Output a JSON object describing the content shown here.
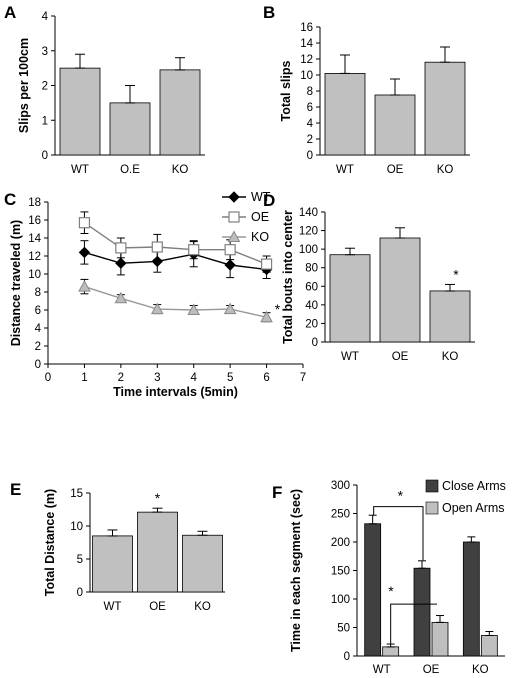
{
  "panels": [
    {
      "letter": "A",
      "chart_data": {
        "type": "bar",
        "categories": [
          "WT",
          "O.E",
          "KO"
        ],
        "values": [
          2.5,
          1.5,
          2.45
        ],
        "errors": [
          0.4,
          0.5,
          0.35
        ],
        "ylabel": "Slips per 100cm",
        "ylim": [
          0,
          4
        ],
        "yticks": [
          0,
          1,
          2,
          3,
          4
        ],
        "grid": false
      }
    },
    {
      "letter": "B",
      "chart_data": {
        "type": "bar",
        "categories": [
          "WT",
          "OE",
          "KO"
        ],
        "values": [
          10.2,
          7.5,
          11.6
        ],
        "errors": [
          2.3,
          2.0,
          1.9
        ],
        "ylabel": "Total slips",
        "ylim": [
          0,
          16
        ],
        "yticks": [
          0,
          2,
          4,
          6,
          8,
          10,
          12,
          14,
          16
        ],
        "grid": false
      }
    },
    {
      "letter": "C",
      "chart_data": {
        "type": "line",
        "x": [
          1,
          2,
          3,
          4,
          5,
          6
        ],
        "series": [
          {
            "name": "WT",
            "values": [
              12.4,
              11.2,
              11.4,
              12.2,
              11.0,
              10.5
            ],
            "errors": [
              1.3,
              1.3,
              1.2,
              1.4,
              1.4,
              1.0
            ],
            "marker": "diamond",
            "color": "#000000"
          },
          {
            "name": "OE",
            "values": [
              15.7,
              12.9,
              13.0,
              12.7,
              12.7,
              11.1
            ],
            "errors": [
              1.2,
              1.1,
              1.4,
              1.0,
              1.1,
              0.9
            ],
            "marker": "square",
            "color": "#7f7f7f"
          },
          {
            "name": "KO",
            "values": [
              8.6,
              7.3,
              6.1,
              6.0,
              6.1,
              5.2
            ],
            "errors": [
              0.8,
              0.4,
              0.5,
              0.5,
              0.4,
              0.5
            ],
            "marker": "triangle",
            "color": "#999999"
          }
        ],
        "xlabel": "Time intervals (5min)",
        "ylabel": "Distance traveled (m)",
        "xlim": [
          0,
          7
        ],
        "ylim": [
          0,
          18
        ],
        "xticks": [
          0,
          1,
          2,
          3,
          4,
          5,
          6,
          7
        ],
        "yticks": [
          0,
          2,
          4,
          6,
          8,
          10,
          12,
          14,
          16,
          18
        ],
        "legend": "top-right",
        "grid": false,
        "annotations": [
          {
            "text": "*",
            "x": 6.3,
            "y": 6.2
          }
        ]
      }
    },
    {
      "letter": "D",
      "chart_data": {
        "type": "bar",
        "categories": [
          "WT",
          "OE",
          "KO"
        ],
        "values": [
          94,
          112,
          55
        ],
        "errors": [
          7,
          11,
          7
        ],
        "ylabel": "Total bouts into center",
        "ylim": [
          0,
          140
        ],
        "yticks": [
          0,
          20,
          40,
          60,
          80,
          100,
          120,
          140
        ],
        "grid": false,
        "annotations": [
          {
            "text": "*",
            "category": "KO"
          }
        ]
      }
    },
    {
      "letter": "E",
      "chart_data": {
        "type": "bar",
        "categories": [
          "WT",
          "OE",
          "KO"
        ],
        "values": [
          8.5,
          12.1,
          8.6
        ],
        "errors": [
          0.9,
          0.6,
          0.6
        ],
        "ylabel": "Total Distance (m)",
        "ylim": [
          0,
          15
        ],
        "yticks": [
          0,
          5,
          10,
          15
        ],
        "grid": false,
        "annotations": [
          {
            "text": "*",
            "category": "OE"
          }
        ]
      }
    },
    {
      "letter": "F",
      "chart_data": {
        "type": "bar",
        "categories": [
          "WT",
          "OE",
          "KO"
        ],
        "series": [
          {
            "name": "Close Arms",
            "values": [
              232,
              154,
              200
            ],
            "errors": [
              15,
              13,
              9
            ],
            "color": "#404040"
          },
          {
            "name": "Open Arms",
            "values": [
              16,
              59,
              36
            ],
            "errors": [
              5,
              12,
              7
            ],
            "color": "#bfbfbf"
          }
        ],
        "ylabel": "Time in each segment (sec)",
        "ylim": [
          0,
          300
        ],
        "yticks": [
          0,
          50,
          100,
          150,
          200,
          250,
          300
        ],
        "legend": "top-right",
        "grid": false,
        "annotations": [
          {
            "text": "*"
          },
          {
            "text": "*"
          }
        ]
      }
    }
  ],
  "colors": {
    "bar_fill": "#c0c0c0",
    "bar_stroke": "#000000"
  }
}
